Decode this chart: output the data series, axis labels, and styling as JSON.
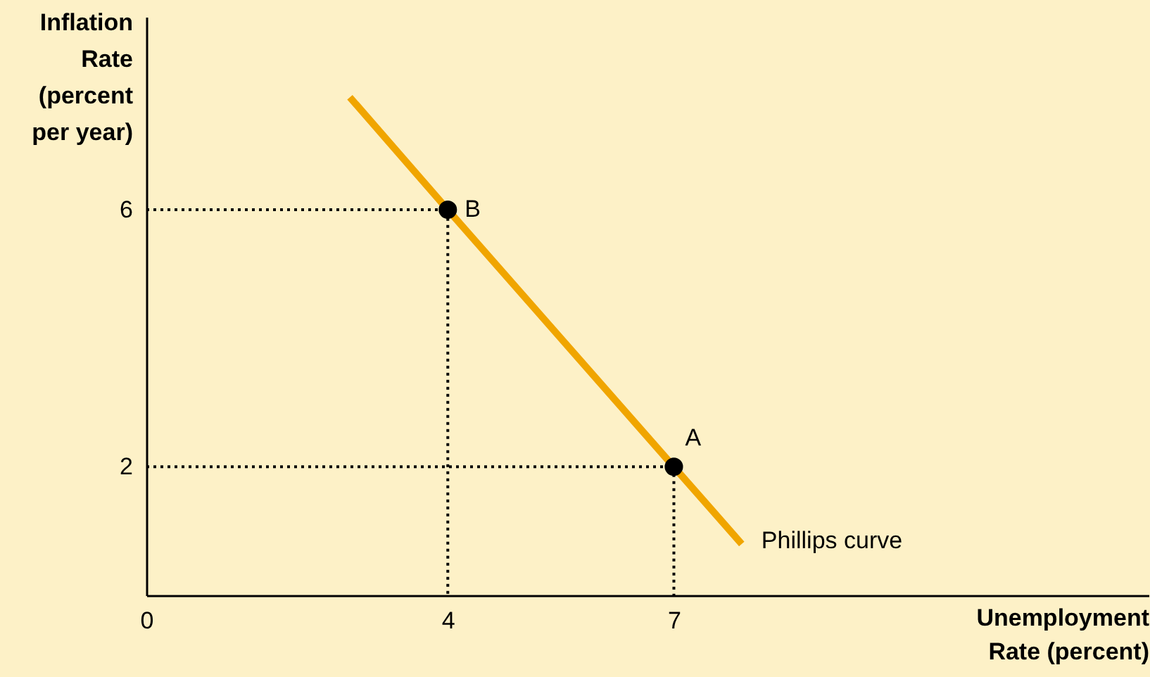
{
  "chart_data": {
    "type": "line",
    "xlabel": "Unemployment Rate (percent)",
    "ylabel": "Inflation Rate (percent per year)",
    "xlim": [
      0,
      13.3
    ],
    "ylim": [
      0,
      9
    ],
    "xticks": [
      0,
      4,
      7
    ],
    "yticks": [
      2,
      6
    ],
    "grid": false,
    "series": [
      {
        "name": "Phillips curve",
        "color": "#f0a500",
        "x": [
          2.7,
          4,
          7,
          7.9
        ],
        "values": [
          7.75,
          6,
          2,
          0.8
        ]
      },
      {
        "line_style": "dotted",
        "color": "#000000",
        "x": [
          0,
          4,
          4
        ],
        "values": [
          6,
          6,
          0
        ]
      },
      {
        "line_style": "dotted",
        "color": "#000000",
        "x": [
          0,
          7,
          7
        ],
        "values": [
          2,
          2,
          0
        ]
      },
      {
        "type": "scatter",
        "marker": "circle",
        "color": "#000000",
        "x": [
          4,
          7
        ],
        "values": [
          6,
          2
        ]
      }
    ],
    "annotations": [
      {
        "text": "B",
        "x": 4,
        "y": 6
      },
      {
        "text": "A",
        "x": 7,
        "y": 2
      }
    ]
  }
}
